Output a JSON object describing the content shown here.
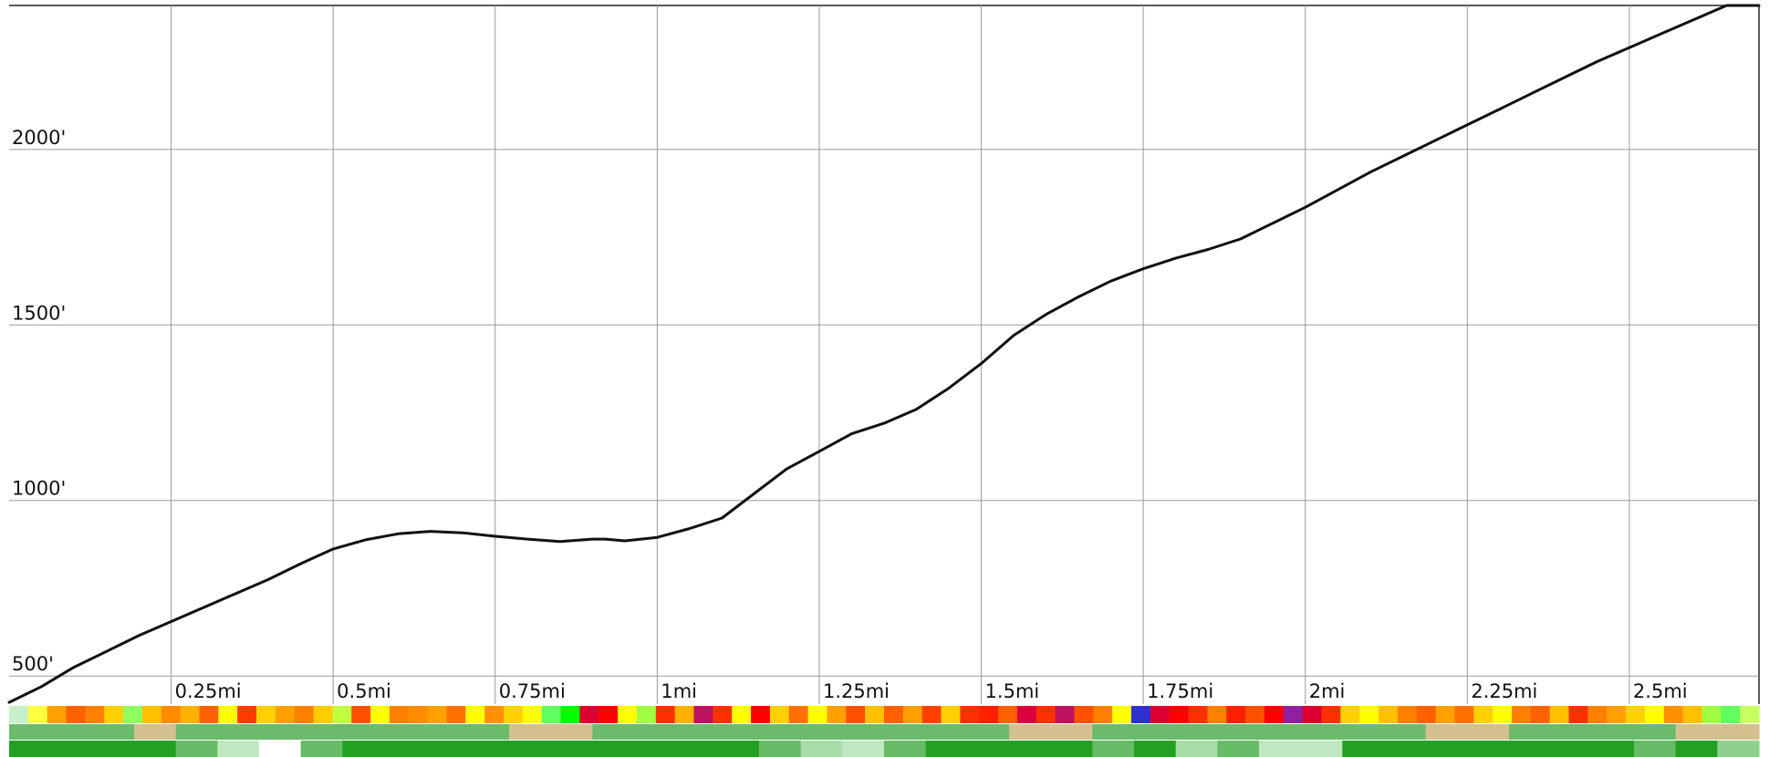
{
  "chart_data": {
    "type": "line",
    "title": "",
    "xlabel": "",
    "ylabel": "",
    "x_unit": "mi",
    "y_unit": "ft",
    "xlim": [
      0,
      2.7
    ],
    "ylim": [
      420,
      2410
    ],
    "grid": true,
    "x_ticks": [
      {
        "value": 0.25,
        "label": "0.25mi"
      },
      {
        "value": 0.5,
        "label": "0.5mi"
      },
      {
        "value": 0.75,
        "label": "0.75mi"
      },
      {
        "value": 1,
        "label": "1mi"
      },
      {
        "value": 1.25,
        "label": "1.25mi"
      },
      {
        "value": 1.5,
        "label": "1.5mi"
      },
      {
        "value": 1.75,
        "label": "1.75mi"
      },
      {
        "value": 2,
        "label": "2mi"
      },
      {
        "value": 2.25,
        "label": "2.25mi"
      },
      {
        "value": 2.5,
        "label": "2.5mi"
      }
    ],
    "y_ticks": [
      {
        "value": 500,
        "label": "500'"
      },
      {
        "value": 1000,
        "label": "1000'"
      },
      {
        "value": 1500,
        "label": "1500'"
      },
      {
        "value": 2000,
        "label": "2000'"
      }
    ],
    "series": [
      {
        "color": "#111111",
        "x": [
          0,
          0.05,
          0.1,
          0.15,
          0.2,
          0.25,
          0.3,
          0.35,
          0.4,
          0.45,
          0.5,
          0.55,
          0.6,
          0.65,
          0.7,
          0.75,
          0.8,
          0.85,
          0.9,
          0.92,
          0.95,
          1.0,
          1.05,
          1.1,
          1.15,
          1.2,
          1.25,
          1.3,
          1.35,
          1.4,
          1.45,
          1.5,
          1.55,
          1.6,
          1.65,
          1.7,
          1.75,
          1.8,
          1.85,
          1.9,
          1.95,
          2.0,
          2.05,
          2.1,
          2.15,
          2.2,
          2.25,
          2.3,
          2.35,
          2.4,
          2.45,
          2.5,
          2.55,
          2.6,
          2.65,
          2.7
        ],
        "values": [
          425,
          470,
          525,
          570,
          615,
          655,
          695,
          735,
          775,
          820,
          862,
          888,
          905,
          912,
          908,
          898,
          890,
          883,
          890,
          890,
          885,
          895,
          920,
          950,
          1020,
          1090,
          1140,
          1190,
          1220,
          1260,
          1320,
          1390,
          1470,
          1530,
          1580,
          1625,
          1660,
          1690,
          1715,
          1745,
          1790,
          1835,
          1885,
          1935,
          1980,
          2025,
          2070,
          2115,
          2160,
          2205,
          2250,
          2290,
          2330,
          2370,
          2410,
          2410
        ]
      }
    ]
  },
  "colors": {
    "grid": "#999999",
    "line": "#111111",
    "band_top": [
      "#c8f0c8",
      "#ffff40",
      "#ffa000",
      "#ff6000",
      "#ff8000",
      "#ffd000",
      "#90ff60",
      "#ffc000",
      "#ff8c00",
      "#ffb000",
      "#ff6000",
      "#ffff00",
      "#ff3c00",
      "#ffd000",
      "#ffa000",
      "#ff8000",
      "#ffcc00",
      "#c0ff40",
      "#ff5000",
      "#ffff00",
      "#ff8000",
      "#ff8c00",
      "#ffa000",
      "#ff7000",
      "#ffff00",
      "#ff9000",
      "#ffd000",
      "#ffff00",
      "#60ff60",
      "#00ff00",
      "#dd0030",
      "#ff0000",
      "#ffff00",
      "#a0ff40",
      "#ff3000",
      "#ffb000",
      "#c01060",
      "#ff3000",
      "#ffff00",
      "#ff0000",
      "#ffd000",
      "#ff7000",
      "#ffff00",
      "#ffa000",
      "#ff5000",
      "#ffc000",
      "#ff6000",
      "#ffa000",
      "#ff4000",
      "#ffd000",
      "#ff3000",
      "#ff2000",
      "#ff6000",
      "#dd0040",
      "#ff3000",
      "#c01060",
      "#ff5000",
      "#ff8000",
      "#ffff00",
      "#3030d0",
      "#dd0030",
      "#ff0000",
      "#ff3000",
      "#ff8000",
      "#ff2000",
      "#ff5000",
      "#ff0000",
      "#9020a0",
      "#dd0030",
      "#ff3000",
      "#ffd000",
      "#ffff00",
      "#ffc000",
      "#ff8000",
      "#ff6000",
      "#ffa000",
      "#ff7000",
      "#ffd000",
      "#ffff00",
      "#ff8000",
      "#ff6000",
      "#ffc000",
      "#ff3000",
      "#ff8000",
      "#ffa000",
      "#ffd000",
      "#ffff00",
      "#ff9000",
      "#ffc000",
      "#a0ff40",
      "#60ff60",
      "#c8ff60"
    ],
    "band_mid": [
      "#6cba6c",
      "#6cba6c",
      "#6cba6c",
      "#d4c08e",
      "#6cba6c",
      "#6cba6c",
      "#6cba6c",
      "#6cba6c",
      "#6cba6c",
      "#6cba6c",
      "#6cba6c",
      "#6cba6c",
      "#d4c08e",
      "#d4c08e",
      "#6cba6c",
      "#6cba6c",
      "#6cba6c",
      "#6cba6c",
      "#6cba6c",
      "#6cba6c",
      "#6cba6c",
      "#6cba6c",
      "#6cba6c",
      "#6cba6c",
      "#d4c08e",
      "#d4c08e",
      "#6cba6c",
      "#6cba6c",
      "#6cba6c",
      "#6cba6c",
      "#6cba6c",
      "#6cba6c",
      "#6cba6c",
      "#6cba6c",
      "#d4c08e",
      "#d4c08e",
      "#6cba6c",
      "#6cba6c",
      "#6cba6c",
      "#6cba6c",
      "#d4c08e",
      "#d4c08e"
    ],
    "band_bottom": [
      "#22a022",
      "#22a022",
      "#22a022",
      "#22a022",
      "#66bb66",
      "#c0e8c0",
      "#ffffff",
      "#66bb66",
      "#22a022",
      "#22a022",
      "#22a022",
      "#22a022",
      "#22a022",
      "#22a022",
      "#22a022",
      "#22a022",
      "#22a022",
      "#22a022",
      "#66bb66",
      "#a8dca8",
      "#c0e8c0",
      "#66bb66",
      "#22a022",
      "#22a022",
      "#22a022",
      "#22a022",
      "#66bb66",
      "#22a022",
      "#a8dca8",
      "#66bb66",
      "#c0e8c0",
      "#c0e8c0",
      "#22a022",
      "#22a022",
      "#22a022",
      "#22a022",
      "#22a022",
      "#22a022",
      "#22a022",
      "#66bb66",
      "#22a022",
      "#8fd08f"
    ]
  }
}
